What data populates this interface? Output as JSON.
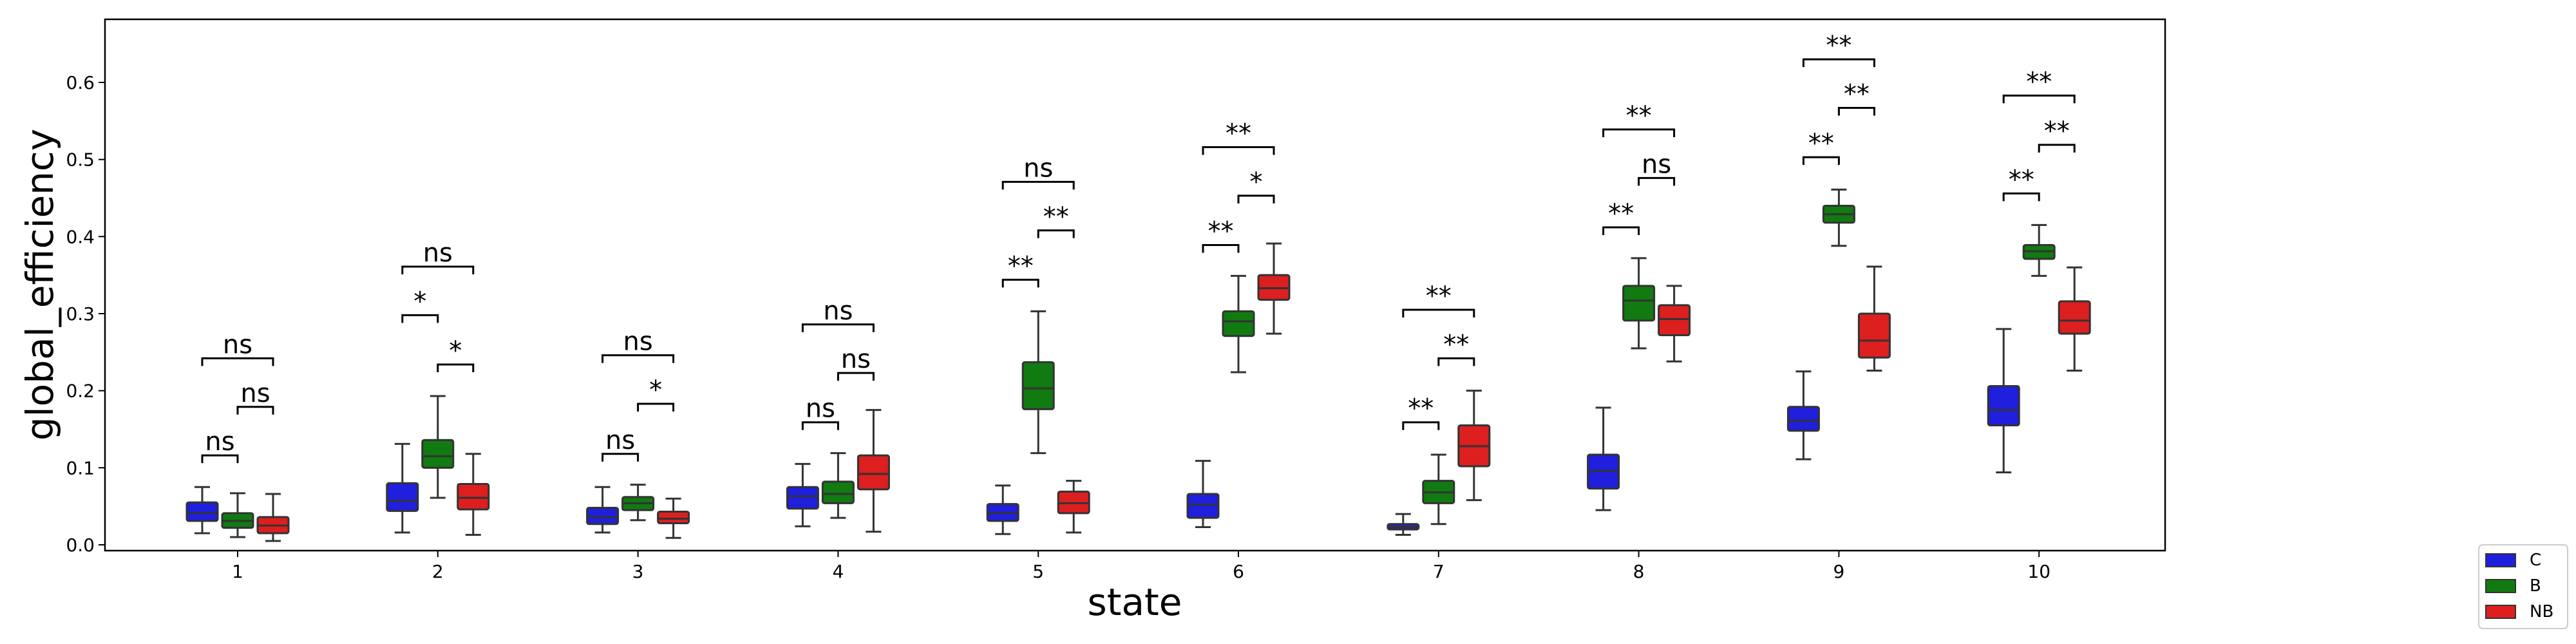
{
  "chart_data": {
    "type": "box",
    "xlabel": "state",
    "ylabel": "global_efficiency",
    "ylim": [
      -0.01,
      0.685
    ],
    "yticks": [
      "0.0",
      "0.1",
      "0.2",
      "0.3",
      "0.4",
      "0.5",
      "0.6"
    ],
    "categories": [
      "1",
      "2",
      "3",
      "4",
      "5",
      "6",
      "7",
      "8",
      "9",
      "10"
    ],
    "legend_position": "bottom-right, outside plot",
    "colors": {
      "C": "#1f1fdd",
      "B": "#117a11",
      "NB": "#dd1f1f"
    },
    "series": [
      {
        "name": "C",
        "boxes": [
          {
            "whislo": 0.015,
            "q1": 0.031,
            "med": 0.041,
            "q3": 0.055,
            "whishi": 0.075
          },
          {
            "whislo": 0.016,
            "q1": 0.044,
            "med": 0.057,
            "q3": 0.08,
            "whishi": 0.131
          },
          {
            "whislo": 0.016,
            "q1": 0.027,
            "med": 0.036,
            "q3": 0.048,
            "whishi": 0.075
          },
          {
            "whislo": 0.024,
            "q1": 0.047,
            "med": 0.063,
            "q3": 0.075,
            "whishi": 0.105
          },
          {
            "whislo": 0.014,
            "q1": 0.031,
            "med": 0.041,
            "q3": 0.053,
            "whishi": 0.077
          },
          {
            "whislo": 0.023,
            "q1": 0.035,
            "med": 0.052,
            "q3": 0.066,
            "whishi": 0.109
          },
          {
            "whislo": 0.013,
            "q1": 0.02,
            "med": 0.023,
            "q3": 0.027,
            "whishi": 0.04
          },
          {
            "whislo": 0.045,
            "q1": 0.073,
            "med": 0.096,
            "q3": 0.117,
            "whishi": 0.178
          },
          {
            "whislo": 0.111,
            "q1": 0.148,
            "med": 0.161,
            "q3": 0.179,
            "whishi": 0.225
          },
          {
            "whislo": 0.094,
            "q1": 0.155,
            "med": 0.175,
            "q3": 0.206,
            "whishi": 0.28
          }
        ]
      },
      {
        "name": "B",
        "boxes": [
          {
            "whislo": 0.01,
            "q1": 0.022,
            "med": 0.031,
            "q3": 0.041,
            "whishi": 0.067
          },
          {
            "whislo": 0.061,
            "q1": 0.1,
            "med": 0.115,
            "q3": 0.136,
            "whishi": 0.193
          },
          {
            "whislo": 0.032,
            "q1": 0.045,
            "med": 0.054,
            "q3": 0.062,
            "whishi": 0.078
          },
          {
            "whislo": 0.035,
            "q1": 0.054,
            "med": 0.066,
            "q3": 0.082,
            "whishi": 0.119
          },
          {
            "whislo": 0.119,
            "q1": 0.176,
            "med": 0.203,
            "q3": 0.237,
            "whishi": 0.303
          },
          {
            "whislo": 0.224,
            "q1": 0.271,
            "med": 0.29,
            "q3": 0.303,
            "whishi": 0.349
          },
          {
            "whislo": 0.027,
            "q1": 0.054,
            "med": 0.068,
            "q3": 0.083,
            "whishi": 0.117
          },
          {
            "whislo": 0.255,
            "q1": 0.291,
            "med": 0.317,
            "q3": 0.336,
            "whishi": 0.372
          },
          {
            "whislo": 0.388,
            "q1": 0.418,
            "med": 0.429,
            "q3": 0.44,
            "whishi": 0.461
          },
          {
            "whislo": 0.349,
            "q1": 0.371,
            "med": 0.381,
            "q3": 0.389,
            "whishi": 0.415
          }
        ]
      },
      {
        "name": "NB",
        "boxes": [
          {
            "whislo": 0.005,
            "q1": 0.015,
            "med": 0.025,
            "q3": 0.036,
            "whishi": 0.066
          },
          {
            "whislo": 0.013,
            "q1": 0.046,
            "med": 0.061,
            "q3": 0.079,
            "whishi": 0.118
          },
          {
            "whislo": 0.009,
            "q1": 0.028,
            "med": 0.034,
            "q3": 0.043,
            "whishi": 0.06
          },
          {
            "whislo": 0.017,
            "q1": 0.072,
            "med": 0.092,
            "q3": 0.116,
            "whishi": 0.175
          },
          {
            "whislo": 0.016,
            "q1": 0.041,
            "med": 0.054,
            "q3": 0.069,
            "whishi": 0.083
          },
          {
            "whislo": 0.274,
            "q1": 0.318,
            "med": 0.333,
            "q3": 0.35,
            "whishi": 0.391
          },
          {
            "whislo": 0.058,
            "q1": 0.102,
            "med": 0.128,
            "q3": 0.155,
            "whishi": 0.2
          },
          {
            "whislo": 0.238,
            "q1": 0.272,
            "med": 0.293,
            "q3": 0.311,
            "whishi": 0.336
          },
          {
            "whislo": 0.226,
            "q1": 0.243,
            "med": 0.265,
            "q3": 0.3,
            "whishi": 0.361
          },
          {
            "whislo": 0.226,
            "q1": 0.274,
            "med": 0.291,
            "q3": 0.316,
            "whishi": 0.36
          }
        ]
      }
    ],
    "annotations": [
      {
        "category": "1",
        "pair": [
          "C",
          "B"
        ],
        "y": 0.116,
        "label": "ns"
      },
      {
        "category": "1",
        "pair": [
          "B",
          "NB"
        ],
        "y": 0.179,
        "label": "ns"
      },
      {
        "category": "1",
        "pair": [
          "C",
          "NB"
        ],
        "y": 0.242,
        "label": "ns"
      },
      {
        "category": "2",
        "pair": [
          "C",
          "B"
        ],
        "y": 0.298,
        "label": "*"
      },
      {
        "category": "2",
        "pair": [
          "B",
          "NB"
        ],
        "y": 0.234,
        "label": "*"
      },
      {
        "category": "2",
        "pair": [
          "C",
          "NB"
        ],
        "y": 0.361,
        "label": "ns"
      },
      {
        "category": "3",
        "pair": [
          "C",
          "B"
        ],
        "y": 0.118,
        "label": "ns"
      },
      {
        "category": "3",
        "pair": [
          "B",
          "NB"
        ],
        "y": 0.183,
        "label": "*"
      },
      {
        "category": "3",
        "pair": [
          "C",
          "NB"
        ],
        "y": 0.246,
        "label": "ns"
      },
      {
        "category": "4",
        "pair": [
          "C",
          "B"
        ],
        "y": 0.159,
        "label": "ns"
      },
      {
        "category": "4",
        "pair": [
          "B",
          "NB"
        ],
        "y": 0.223,
        "label": "ns"
      },
      {
        "category": "4",
        "pair": [
          "C",
          "NB"
        ],
        "y": 0.286,
        "label": "ns"
      },
      {
        "category": "5",
        "pair": [
          "C",
          "B"
        ],
        "y": 0.344,
        "label": "**"
      },
      {
        "category": "5",
        "pair": [
          "B",
          "NB"
        ],
        "y": 0.408,
        "label": "**"
      },
      {
        "category": "5",
        "pair": [
          "C",
          "NB"
        ],
        "y": 0.471,
        "label": "ns"
      },
      {
        "category": "6",
        "pair": [
          "C",
          "B"
        ],
        "y": 0.389,
        "label": "**"
      },
      {
        "category": "6",
        "pair": [
          "B",
          "NB"
        ],
        "y": 0.453,
        "label": "*"
      },
      {
        "category": "6",
        "pair": [
          "C",
          "NB"
        ],
        "y": 0.516,
        "label": "**"
      },
      {
        "category": "7",
        "pair": [
          "C",
          "B"
        ],
        "y": 0.159,
        "label": "**"
      },
      {
        "category": "7",
        "pair": [
          "B",
          "NB"
        ],
        "y": 0.242,
        "label": "**"
      },
      {
        "category": "7",
        "pair": [
          "C",
          "NB"
        ],
        "y": 0.305,
        "label": "**"
      },
      {
        "category": "8",
        "pair": [
          "C",
          "B"
        ],
        "y": 0.412,
        "label": "**"
      },
      {
        "category": "8",
        "pair": [
          "B",
          "NB"
        ],
        "y": 0.476,
        "label": "ns"
      },
      {
        "category": "8",
        "pair": [
          "C",
          "NB"
        ],
        "y": 0.539,
        "label": "**"
      },
      {
        "category": "9",
        "pair": [
          "C",
          "B"
        ],
        "y": 0.503,
        "label": "**"
      },
      {
        "category": "9",
        "pair": [
          "B",
          "NB"
        ],
        "y": 0.567,
        "label": "**"
      },
      {
        "category": "9",
        "pair": [
          "C",
          "NB"
        ],
        "y": 0.63,
        "label": "**"
      },
      {
        "category": "10",
        "pair": [
          "C",
          "B"
        ],
        "y": 0.456,
        "label": "**"
      },
      {
        "category": "10",
        "pair": [
          "B",
          "NB"
        ],
        "y": 0.519,
        "label": "**"
      },
      {
        "category": "10",
        "pair": [
          "C",
          "NB"
        ],
        "y": 0.583,
        "label": "**"
      }
    ]
  }
}
